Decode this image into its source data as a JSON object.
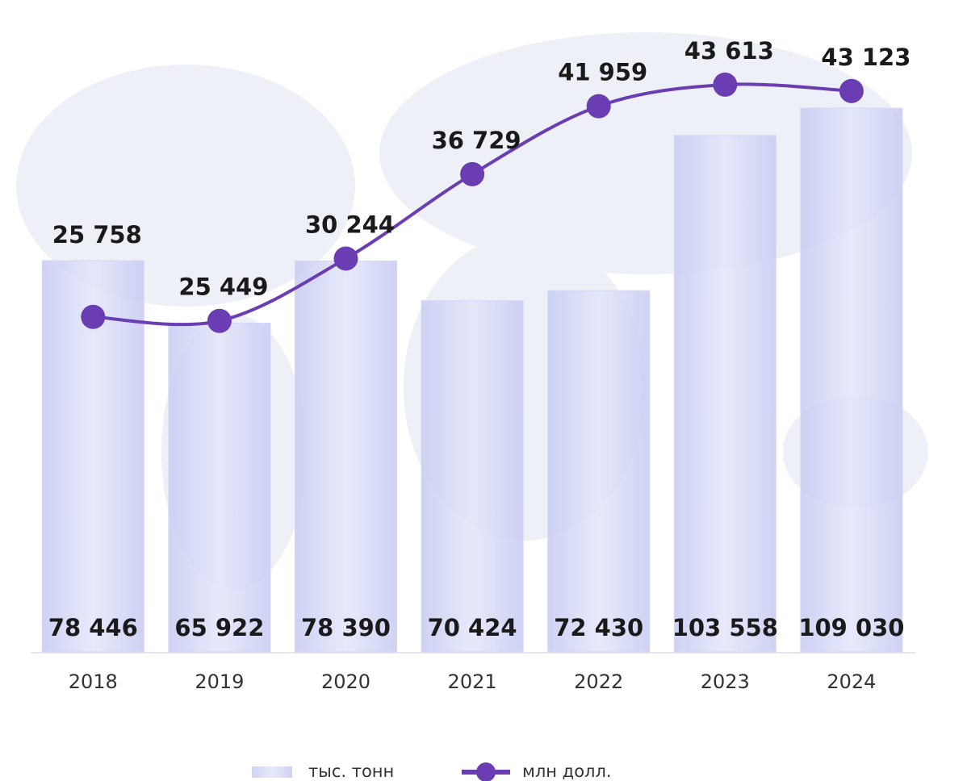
{
  "chart_data": {
    "type": "bar-line",
    "categories": [
      "2018",
      "2019",
      "2020",
      "2021",
      "2022",
      "2023",
      "2024"
    ],
    "series": [
      {
        "name": "тыс. тонн",
        "type": "bar",
        "color": "#d5d8f5",
        "values": [
          78446,
          65922,
          78390,
          70424,
          72430,
          103558,
          109030
        ],
        "value_labels": [
          "78 446",
          "65 922",
          "78 390",
          "70 424",
          "72 430",
          "103 558",
          "109 030"
        ]
      },
      {
        "name": "млн долл.",
        "type": "line",
        "axis": "y2",
        "color": "#6a3db3",
        "values": [
          25758,
          25449,
          30244,
          36729,
          41959,
          43613,
          43123
        ],
        "value_labels": [
          "25 758",
          "25 449",
          "30 244",
          "36 729",
          "41 959",
          "43 613",
          "43 123"
        ]
      }
    ],
    "ylim": [
      0,
      121000
    ],
    "y2lim": [
      0,
      46400
    ],
    "legend": "bottom"
  }
}
